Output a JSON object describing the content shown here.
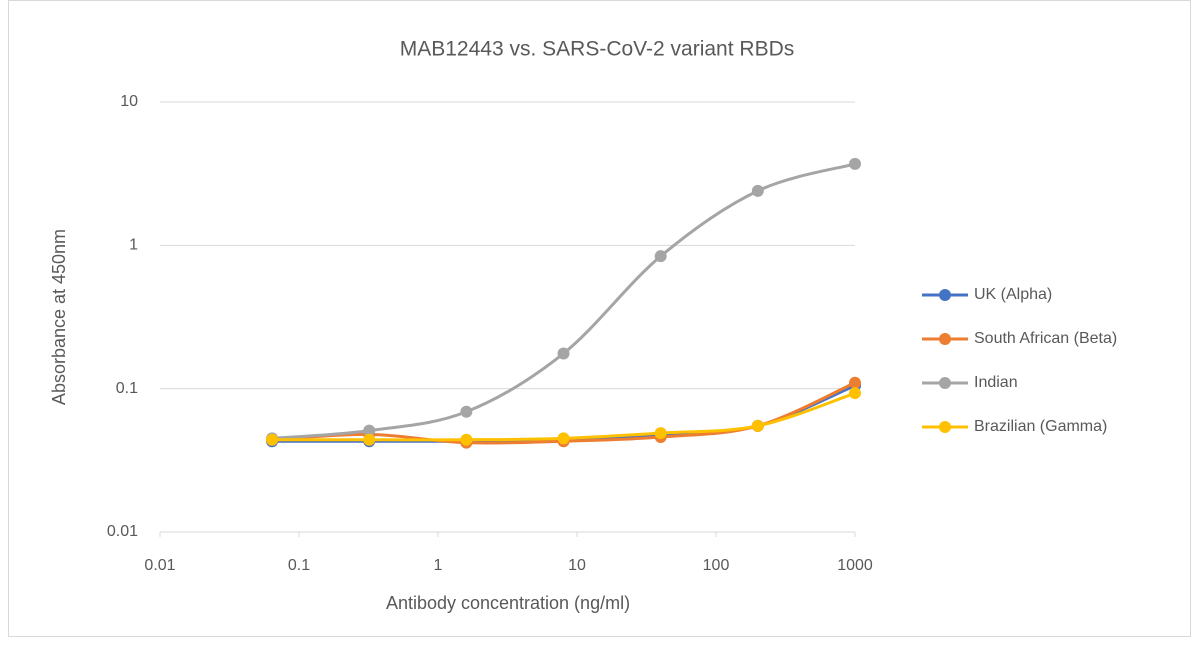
{
  "chart_data": {
    "type": "line",
    "title": "MAB12443 vs. SARS-CoV-2 variant RBDs",
    "x_label": "Antibody concentration (ng/ml)",
    "y_label": "Absorbance at 450nm",
    "x": [
      0.064,
      0.32,
      1.6,
      8,
      40,
      200,
      1000
    ],
    "series": [
      {
        "name": "UK (Alpha)",
        "color": "#4472c4",
        "values": [
          0.043,
          0.043,
          0.043,
          0.044,
          0.047,
          0.055,
          0.105
        ]
      },
      {
        "name": "South African (Beta)",
        "color": "#ed7d31",
        "values": [
          0.044,
          0.048,
          0.042,
          0.043,
          0.046,
          0.055,
          0.11
        ]
      },
      {
        "name": "Indian",
        "color": "#a5a5a5",
        "values": [
          0.045,
          0.051,
          0.069,
          0.176,
          0.84,
          2.4,
          3.7
        ]
      },
      {
        "name": "Brazilian (Gamma)",
        "color": "#ffc000",
        "values": [
          0.044,
          0.044,
          0.044,
          0.045,
          0.049,
          0.055,
          0.093
        ]
      }
    ],
    "xlim": [
      0.01,
      1000
    ],
    "xticks": [
      0.01,
      0.1,
      1,
      10,
      100,
      1000
    ],
    "ylim": [
      0.01,
      10
    ],
    "yticks": [
      0.01,
      0.1,
      1,
      10
    ],
    "xscale": "log",
    "yscale": "log",
    "grid": true,
    "smooth": true,
    "legend": "right"
  }
}
